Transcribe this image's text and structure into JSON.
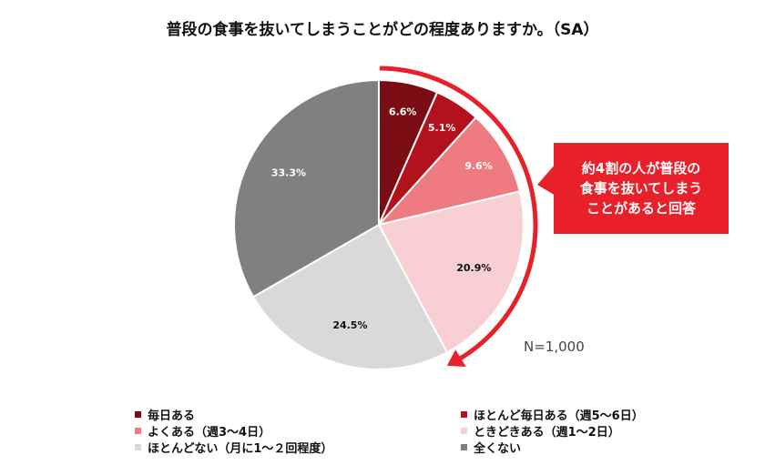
{
  "chart_data": {
    "type": "pie",
    "title": "普段の食事を抜いてしまうことがどの程度ありますか。（SA）",
    "slices": [
      {
        "label": "毎日ある",
        "value": 6.6,
        "display": "6.6%",
        "color": "#7a0c14",
        "label_color": "#ffffff"
      },
      {
        "label": "ほとんど毎日ある（週5～6日）",
        "value": 5.1,
        "display": "5.1%",
        "color": "#b3121c",
        "label_color": "#ffffff"
      },
      {
        "label": "よくある（週3～4日）",
        "value": 9.6,
        "display": "9.6%",
        "color": "#ee7b80",
        "label_color": "#ffffff"
      },
      {
        "label": "ときどきある（週1～2日）",
        "value": 20.9,
        "display": "20.9%",
        "color": "#f8cfd2",
        "label_color": "#111111"
      },
      {
        "label": "ほとんどない（月に1～２回程度）",
        "value": 24.5,
        "display": "24.5%",
        "color": "#d9d9d9",
        "label_color": "#111111"
      },
      {
        "label": "全くない",
        "value": 33.3,
        "display": "33.3%",
        "color": "#808080",
        "label_color": "#ffffff"
      }
    ],
    "legend_position": "bottom",
    "annotation": "約4割の人が普段の\n食事を抜いてしまう\nことがあると回答",
    "sample_size": "N=1,000",
    "accent_color": "#e8202a"
  }
}
